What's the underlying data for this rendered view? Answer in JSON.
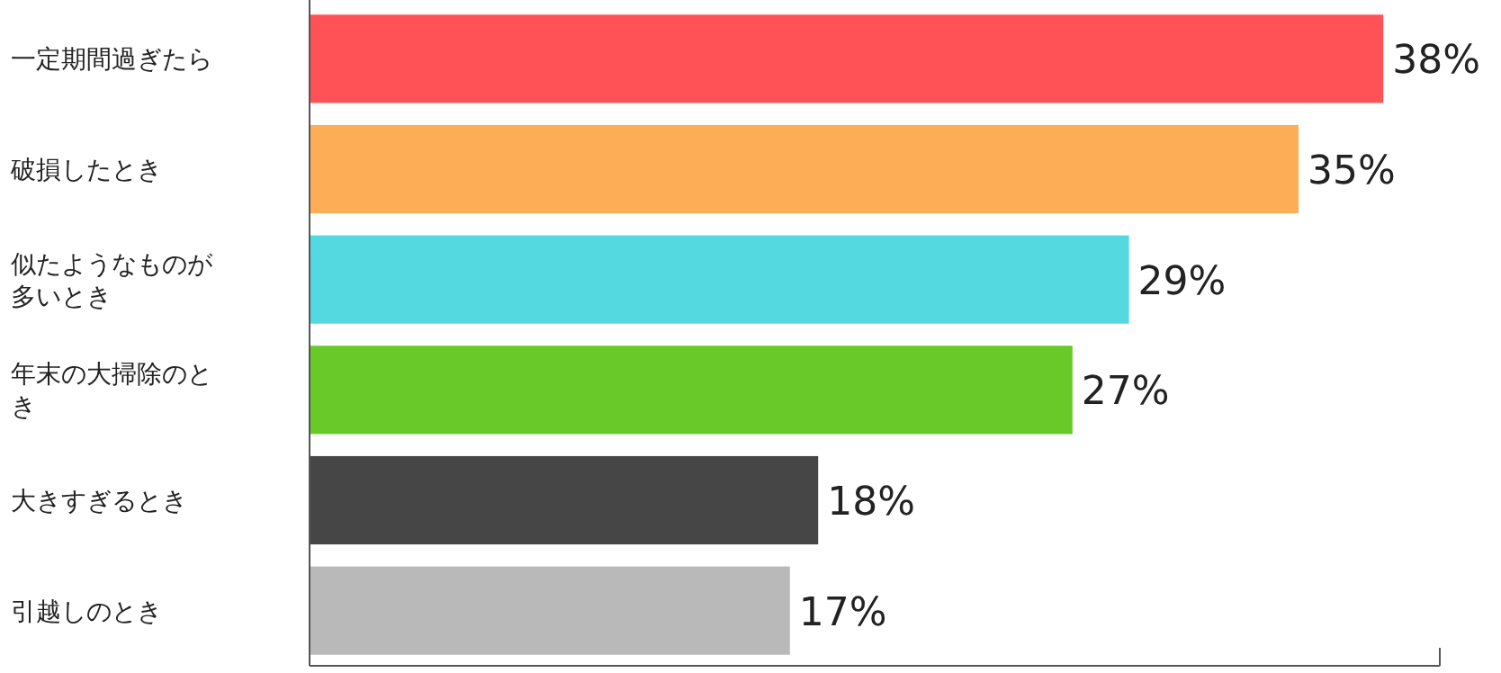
{
  "chart_data": {
    "type": "bar",
    "orientation": "horizontal",
    "categories": [
      "一定期間過ぎたら",
      "破損したとき",
      "似たようなものが多いとき",
      "年末の大掃除のとき",
      "大きすぎるとき",
      "引越しのとき"
    ],
    "values": [
      38,
      35,
      29,
      27,
      18,
      17
    ],
    "value_labels": [
      "38%",
      "35%",
      "29%",
      "27%",
      "18%",
      "17%"
    ],
    "colors": [
      "#fe5257",
      "#fdad55",
      "#55d9e0",
      "#68c929",
      "#464646",
      "#b9b9b9"
    ],
    "xlim": [
      0,
      40
    ]
  }
}
